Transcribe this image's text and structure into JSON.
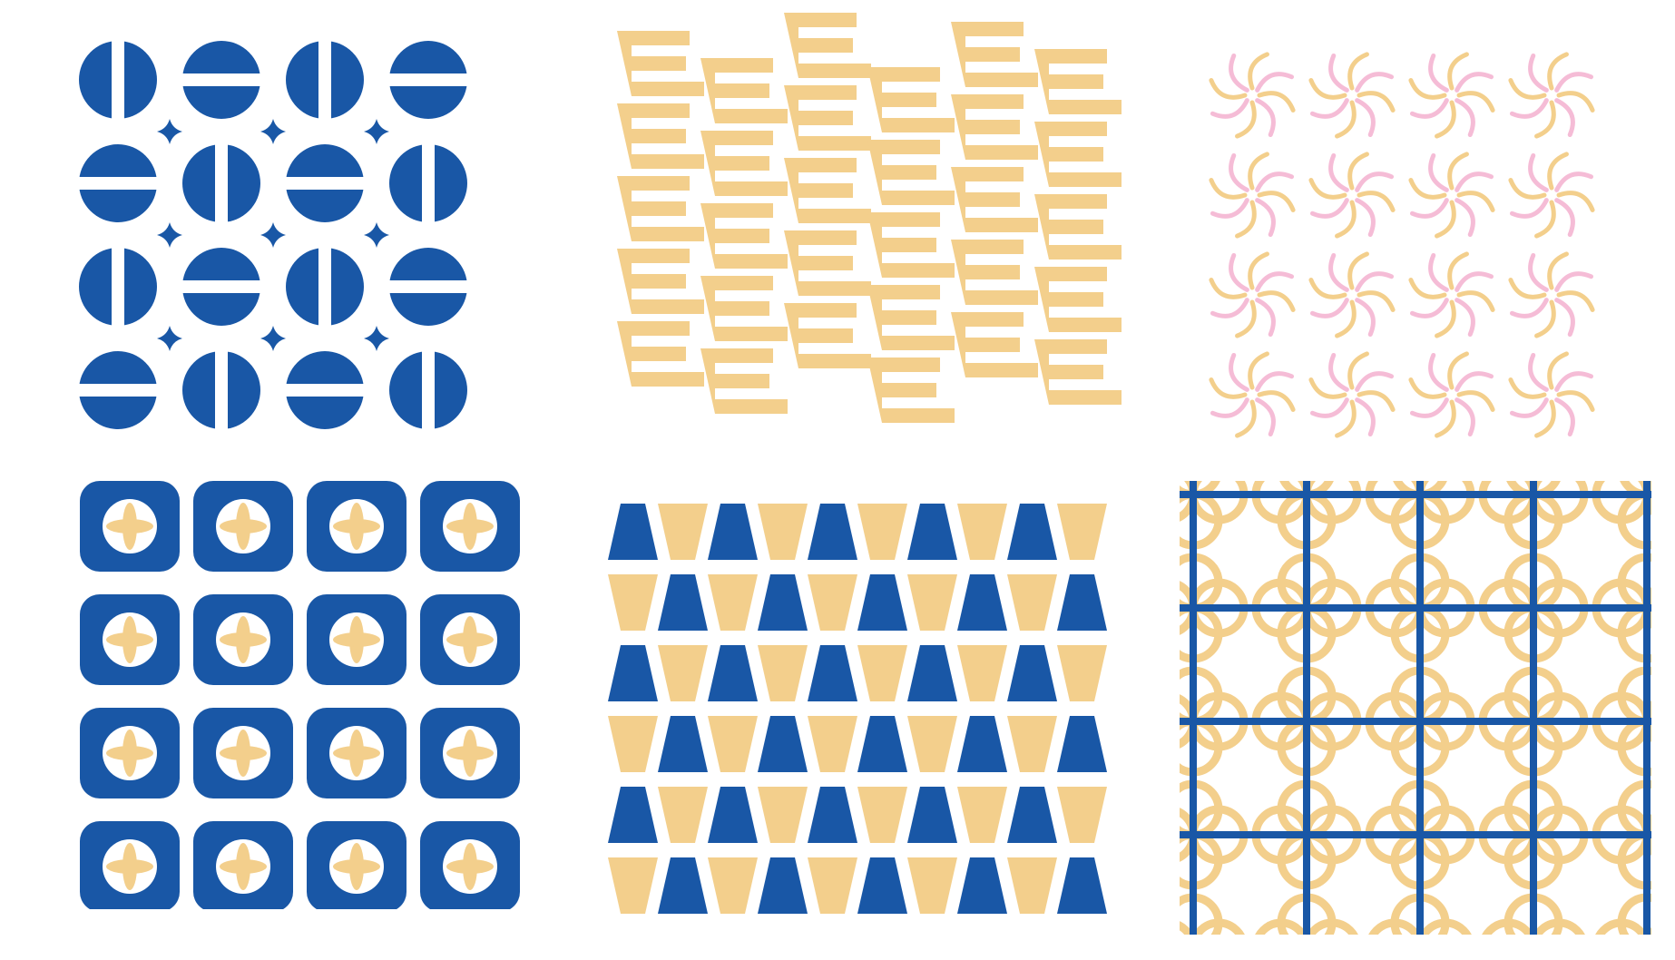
{
  "colors": {
    "blue": "#1957a6",
    "sand": "#f3cf8c",
    "pink": "#f5bcd6",
    "background": "#ffffff"
  },
  "patterns": [
    {
      "id": "t1",
      "name": "split-disc-pattern",
      "icon": "split-circle-icon",
      "colors": [
        "blue"
      ]
    },
    {
      "id": "t2",
      "name": "letter-e-pattern",
      "icon": "letter-e-icon",
      "colors": [
        "sand"
      ]
    },
    {
      "id": "t3",
      "name": "star-flower-pattern",
      "icon": "flower-icon",
      "colors": [
        "sand",
        "pink"
      ]
    },
    {
      "id": "t4",
      "name": "quatrefoil-tile-pattern",
      "icon": "quatrefoil-icon",
      "colors": [
        "blue",
        "sand"
      ]
    },
    {
      "id": "t5",
      "name": "trapezoid-bell-pattern",
      "icon": "trapezoid-icon",
      "colors": [
        "blue",
        "sand"
      ]
    },
    {
      "id": "t6",
      "name": "ring-lattice-pattern",
      "icon": "ring-grid-icon",
      "colors": [
        "sand",
        "blue"
      ]
    }
  ]
}
